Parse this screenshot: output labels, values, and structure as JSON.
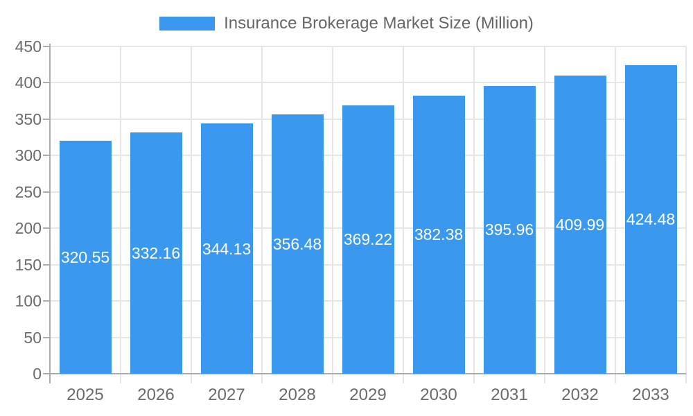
{
  "chart_data": {
    "type": "bar",
    "title": "Insurance Brokerage Market Size (Million)",
    "categories": [
      "2025",
      "2026",
      "2027",
      "2028",
      "2029",
      "2030",
      "2031",
      "2032",
      "2033"
    ],
    "series": [
      {
        "name": "Insurance Brokerage Market Size (Million)",
        "values": [
          320.55,
          332.16,
          344.13,
          356.48,
          369.22,
          382.38,
          395.96,
          409.99,
          424.48
        ]
      }
    ],
    "value_label_decimals": 2,
    "xlabel": "",
    "ylabel": "",
    "ylim": [
      0,
      450
    ],
    "y_tick_step": 50,
    "grid": true,
    "legend_position": "top",
    "colors": {
      "bar_fill": "#3A99EE",
      "bar_label_text": "#FFFFFF",
      "axis_line": "#ACACAC",
      "gridline": "#E6E6E6",
      "tick_text": "#6B6B6B",
      "legend_text": "#666666",
      "background": "#FFFFFF"
    }
  }
}
